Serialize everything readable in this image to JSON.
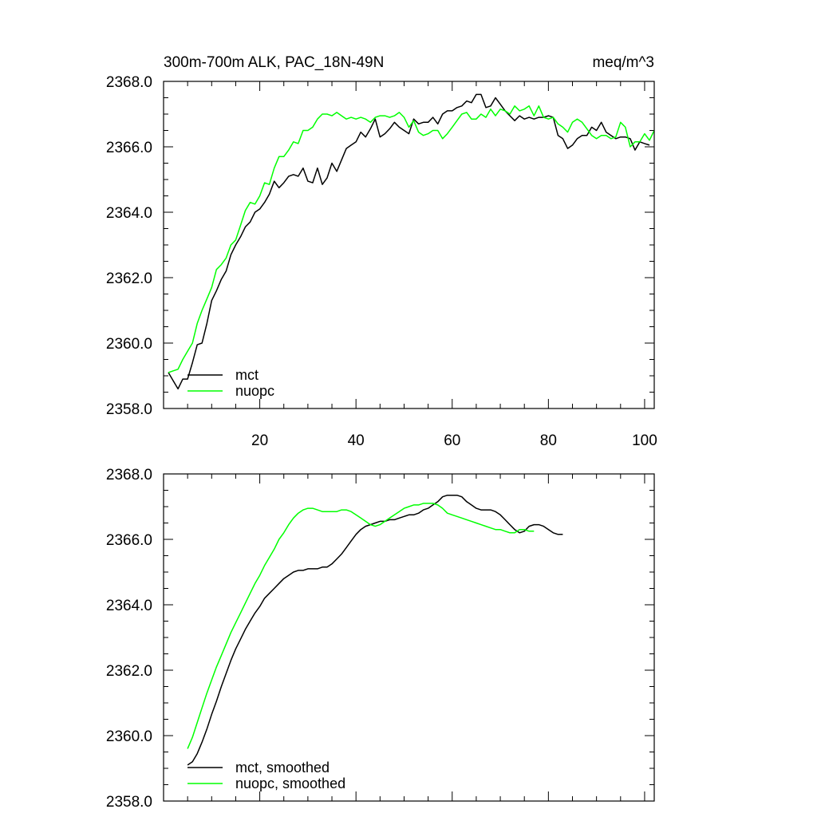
{
  "chart_data": [
    {
      "type": "line",
      "title_left": "300m-700m ALK, PAC_18N-49N",
      "title_right": "meq/m^3",
      "xlabel": "",
      "ylabel": "",
      "xlim": [
        0,
        102
      ],
      "ylim": [
        2358.0,
        2368.0
      ],
      "x_ticks": [
        "20",
        "40",
        "60",
        "80",
        "100"
      ],
      "x_tick_values": [
        20,
        40,
        60,
        80,
        100
      ],
      "y_ticks": [
        "2368.0",
        "2366.0",
        "2364.0",
        "2362.0",
        "2360.0",
        "2358.0"
      ],
      "y_tick_values": [
        2368,
        2366,
        2364,
        2362,
        2360,
        2358
      ],
      "legend_position": "bottom-left",
      "x_start": 1,
      "series": [
        {
          "name": "mct",
          "color": "#000000",
          "values": [
            2359.1,
            2358.85,
            2358.6,
            2358.9,
            2358.9,
            2359.4,
            2359.95,
            2360.0,
            2360.6,
            2361.3,
            2361.6,
            2361.95,
            2362.2,
            2362.7,
            2363.0,
            2363.25,
            2363.55,
            2363.7,
            2364.0,
            2364.1,
            2364.3,
            2364.55,
            2364.95,
            2364.75,
            2364.9,
            2365.1,
            2365.15,
            2365.1,
            2365.35,
            2364.95,
            2364.9,
            2365.35,
            2364.85,
            2365.05,
            2365.5,
            2365.25,
            2365.6,
            2365.95,
            2366.05,
            2366.15,
            2366.45,
            2366.3,
            2366.55,
            2366.85,
            2366.3,
            2366.4,
            2366.55,
            2366.75,
            2366.6,
            2366.5,
            2366.4,
            2366.85,
            2366.7,
            2366.75,
            2366.75,
            2366.9,
            2366.7,
            2367.0,
            2367.1,
            2367.1,
            2367.2,
            2367.25,
            2367.4,
            2367.35,
            2367.6,
            2367.6,
            2367.2,
            2367.25,
            2367.5,
            2367.3,
            2367.1,
            2366.95,
            2366.8,
            2366.95,
            2366.85,
            2366.9,
            2366.85,
            2366.9,
            2366.9,
            2366.95,
            2366.9,
            2366.35,
            2366.25,
            2365.95,
            2366.05,
            2366.25,
            2366.35,
            2366.35,
            2366.6,
            2366.5,
            2366.75,
            2366.45,
            2366.35,
            2366.25,
            2366.3,
            2366.3,
            2366.25,
            2365.9,
            2366.15,
            2366.1,
            2366.05
          ]
        },
        {
          "name": "nuopc",
          "color": "#00ff00",
          "values": [
            2359.1,
            2359.15,
            2359.2,
            2359.5,
            2359.75,
            2360.0,
            2360.6,
            2361.0,
            2361.35,
            2361.7,
            2362.25,
            2362.4,
            2362.6,
            2363.0,
            2363.15,
            2363.6,
            2364.05,
            2364.3,
            2364.25,
            2364.5,
            2364.9,
            2364.85,
            2365.35,
            2365.7,
            2365.7,
            2365.9,
            2366.15,
            2366.1,
            2366.5,
            2366.5,
            2366.6,
            2366.85,
            2367.0,
            2367.0,
            2366.95,
            2367.05,
            2366.95,
            2366.85,
            2366.9,
            2366.85,
            2366.9,
            2366.85,
            2366.75,
            2366.9,
            2366.95,
            2366.95,
            2366.9,
            2366.95,
            2367.05,
            2366.9,
            2366.6,
            2366.8,
            2366.45,
            2366.35,
            2366.4,
            2366.5,
            2366.5,
            2366.25,
            2366.4,
            2366.6,
            2366.8,
            2367.0,
            2367.05,
            2366.85,
            2366.85,
            2367.0,
            2366.9,
            2367.15,
            2366.95,
            2367.15,
            2367.1,
            2367.0,
            2367.25,
            2367.1,
            2367.15,
            2367.25,
            2366.95,
            2367.25,
            2366.9,
            2366.85,
            2366.9,
            2366.7,
            2366.6,
            2366.45,
            2366.75,
            2366.85,
            2366.75,
            2366.55,
            2366.35,
            2366.25,
            2366.35,
            2366.35,
            2366.25,
            2366.3,
            2366.75,
            2366.6,
            2366.0,
            2366.15,
            2366.15,
            2366.4,
            2366.2,
            2366.5
          ]
        }
      ]
    },
    {
      "type": "line",
      "xlabel": "",
      "ylabel": "",
      "xlim": [
        0,
        102
      ],
      "ylim": [
        2358.0,
        2368.0
      ],
      "x_tick_values": [
        20,
        40,
        60,
        80,
        100
      ],
      "y_ticks": [
        "2368.0",
        "2366.0",
        "2364.0",
        "2362.0",
        "2360.0",
        "2358.0"
      ],
      "y_tick_values": [
        2368,
        2366,
        2364,
        2362,
        2360,
        2358
      ],
      "legend_position": "bottom-left",
      "x_start": 5,
      "series": [
        {
          "name": "mct, smoothed",
          "color": "#000000",
          "values": [
            2359.1,
            2359.2,
            2359.45,
            2359.8,
            2360.2,
            2360.65,
            2361.05,
            2361.5,
            2361.9,
            2362.3,
            2362.65,
            2362.95,
            2363.25,
            2363.5,
            2363.75,
            2363.95,
            2364.2,
            2364.35,
            2364.5,
            2364.65,
            2364.8,
            2364.9,
            2365.0,
            2365.05,
            2365.05,
            2365.1,
            2365.1,
            2365.1,
            2365.15,
            2365.15,
            2365.25,
            2365.4,
            2365.55,
            2365.75,
            2365.95,
            2366.15,
            2366.3,
            2366.4,
            2366.45,
            2366.5,
            2366.55,
            2366.55,
            2366.6,
            2366.6,
            2366.65,
            2366.7,
            2366.75,
            2366.75,
            2366.8,
            2366.9,
            2366.95,
            2367.05,
            2367.15,
            2367.3,
            2367.35,
            2367.35,
            2367.35,
            2367.3,
            2367.15,
            2367.05,
            2366.95,
            2366.9,
            2366.9,
            2366.9,
            2366.85,
            2366.75,
            2366.6,
            2366.45,
            2366.3,
            2366.2,
            2366.25,
            2366.4,
            2366.45,
            2366.45,
            2366.4,
            2366.3,
            2366.2,
            2366.15,
            2366.15
          ]
        },
        {
          "name": "nuopc, smoothed",
          "color": "#00ff00",
          "values": [
            2359.6,
            2359.95,
            2360.4,
            2360.85,
            2361.3,
            2361.7,
            2362.1,
            2362.45,
            2362.8,
            2363.15,
            2363.45,
            2363.75,
            2364.05,
            2364.35,
            2364.65,
            2364.9,
            2365.2,
            2365.45,
            2365.7,
            2366.0,
            2366.2,
            2366.45,
            2366.65,
            2366.8,
            2366.9,
            2366.95,
            2366.95,
            2366.9,
            2366.85,
            2366.85,
            2366.85,
            2366.85,
            2366.9,
            2366.9,
            2366.85,
            2366.75,
            2366.65,
            2366.55,
            2366.45,
            2366.4,
            2366.45,
            2366.55,
            2366.65,
            2366.75,
            2366.85,
            2366.95,
            2367.0,
            2367.05,
            2367.05,
            2367.1,
            2367.1,
            2367.1,
            2367.05,
            2366.95,
            2366.8,
            2366.75,
            2366.7,
            2366.65,
            2366.6,
            2366.55,
            2366.5,
            2366.45,
            2366.4,
            2366.35,
            2366.3,
            2366.3,
            2366.25,
            2366.2,
            2366.2,
            2366.3,
            2366.3,
            2366.25,
            2366.25
          ]
        }
      ]
    }
  ]
}
